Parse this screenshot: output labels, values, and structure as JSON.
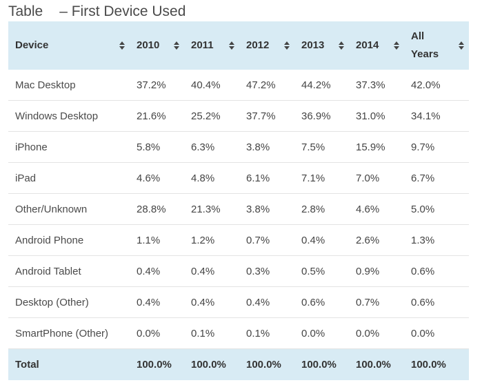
{
  "caption": {
    "prefix": "Table",
    "title": "– First Device Used"
  },
  "table": {
    "headers": [
      "Device",
      "2010",
      "2011",
      "2012",
      "2013",
      "2014",
      "All Years"
    ],
    "rows": [
      [
        "Mac Desktop",
        "37.2%",
        "40.4%",
        "47.2%",
        "44.2%",
        "37.3%",
        "42.0%"
      ],
      [
        "Windows Desktop",
        "21.6%",
        "25.2%",
        "37.7%",
        "36.9%",
        "31.0%",
        "34.1%"
      ],
      [
        "iPhone",
        "5.8%",
        "6.3%",
        "3.8%",
        "7.5%",
        "15.9%",
        "9.7%"
      ],
      [
        "iPad",
        "4.6%",
        "4.8%",
        "6.1%",
        "7.1%",
        "7.0%",
        "6.7%"
      ],
      [
        "Other/Unknown",
        "28.8%",
        "21.3%",
        "3.8%",
        "2.8%",
        "4.6%",
        "5.0%"
      ],
      [
        "Android Phone",
        "1.1%",
        "1.2%",
        "0.7%",
        "0.4%",
        "2.6%",
        "1.3%"
      ],
      [
        "Android Tablet",
        "0.4%",
        "0.4%",
        "0.3%",
        "0.5%",
        "0.9%",
        "0.6%"
      ],
      [
        "Desktop (Other)",
        "0.4%",
        "0.4%",
        "0.4%",
        "0.6%",
        "0.7%",
        "0.6%"
      ],
      [
        "SmartPhone (Other)",
        "0.0%",
        "0.1%",
        "0.1%",
        "0.0%",
        "0.0%",
        "0.0%"
      ]
    ],
    "footer": [
      "Total",
      "100.0%",
      "100.0%",
      "100.0%",
      "100.0%",
      "100.0%",
      "100.0%"
    ]
  },
  "icons": {
    "sort": "sort-icon"
  },
  "colors": {
    "header_bg": "#d8ebf4",
    "row_divider": "#e3e3e3",
    "text": "#444444"
  }
}
